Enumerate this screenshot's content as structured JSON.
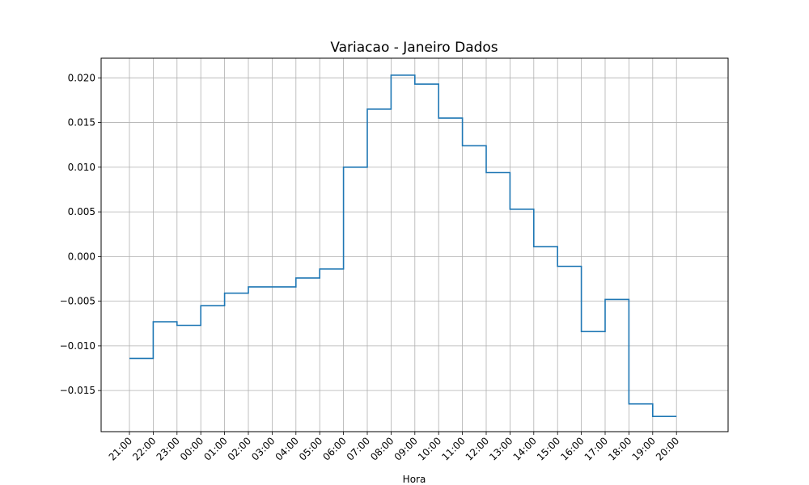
{
  "chart_data": {
    "type": "line",
    "title": "Variacao - Janeiro Dados",
    "xlabel": "Hora",
    "ylabel": "",
    "grid": true,
    "color": "#1f77b4",
    "x_tick_labels": [
      "21:00",
      "22:00",
      "23:00",
      "00:00",
      "01:00",
      "02:00",
      "03:00",
      "04:00",
      "05:00",
      "06:00",
      "07:00",
      "08:00",
      "09:00",
      "10:00",
      "11:00",
      "12:00",
      "13:00",
      "14:00",
      "15:00",
      "16:00",
      "17:00",
      "18:00",
      "19:00",
      "20:00"
    ],
    "y_ticks": [
      0.02,
      0.015,
      0.01,
      0.005,
      0.0,
      -0.005,
      -0.01,
      -0.015
    ],
    "y_tick_labels": [
      "0.020",
      "0.015",
      "0.010",
      "0.005",
      "0.000",
      "−0.005",
      "−0.010",
      "−0.015"
    ],
    "ylim": [
      -0.0196,
      0.0222
    ],
    "series": [
      {
        "values": [
          -0.0114,
          -0.0073,
          -0.0077,
          -0.0055,
          -0.0041,
          -0.0034,
          -0.0034,
          -0.0024,
          -0.0014,
          0.01,
          0.0165,
          0.0203,
          0.0193,
          0.0155,
          0.0124,
          0.0094,
          0.0053,
          0.0011,
          -0.0011,
          -0.0084,
          -0.0048,
          -0.0165,
          -0.0179
        ]
      }
    ]
  }
}
